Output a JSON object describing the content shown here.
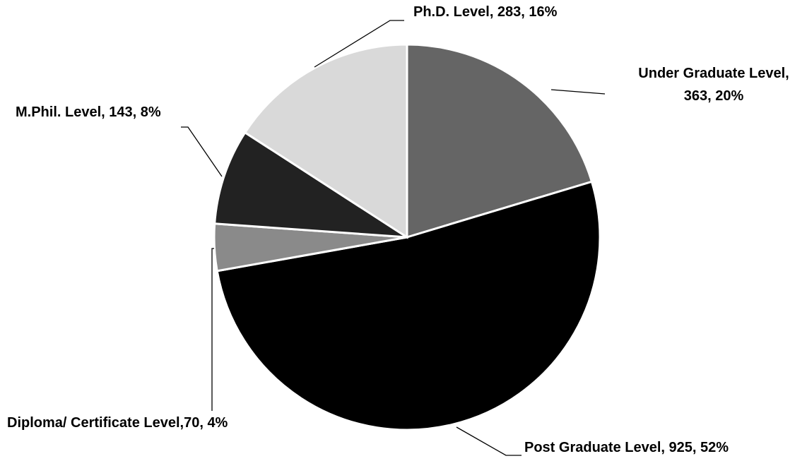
{
  "chart_data": {
    "type": "pie",
    "categories": [
      "Under Graduate Level",
      "Post Graduate Level",
      "Diploma/ Certificate Level",
      "M.Phil. Level",
      "Ph.D. Level"
    ],
    "values": [
      363,
      925,
      70,
      143,
      283
    ],
    "value_labels": [
      [
        "Under Graduate Level,",
        "363, 20%"
      ],
      [
        "Post Graduate Level, 925, 52%"
      ],
      [
        "Diploma/ Certificate Level,70, 4%"
      ],
      [
        "M.Phil. Level, 143, 8%"
      ],
      [
        "Ph.D. Level, 283, 16%"
      ]
    ],
    "colors": [
      "#656565",
      "#000000",
      "#8a8a8a",
      "#222222",
      "#d9d9d9"
    ]
  }
}
